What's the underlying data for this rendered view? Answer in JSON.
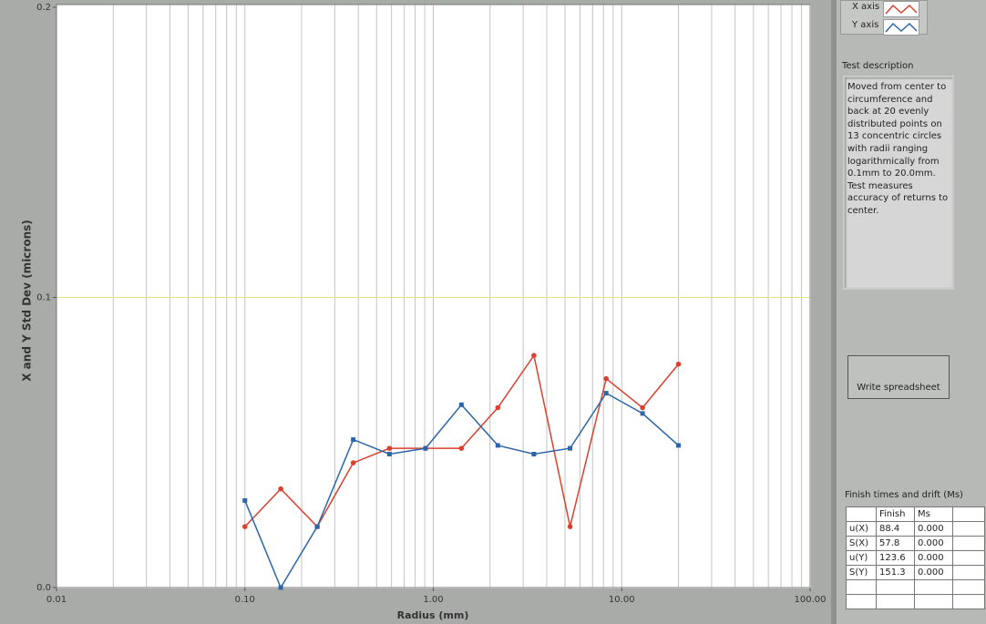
{
  "chart_data": {
    "type": "line",
    "x_label": "Radius (mm)",
    "y_label": "X and Y Std Dev  (microns)",
    "x": [
      0.1,
      0.155,
      0.242,
      0.376,
      0.585,
      0.909,
      1.41,
      2.2,
      3.42,
      5.32,
      8.27,
      12.9,
      20.0
    ],
    "series": [
      {
        "name": "X axis",
        "color": "#d8412f",
        "marker": "circle",
        "values": [
          0.021,
          0.034,
          0.021,
          0.043,
          0.048,
          0.048,
          0.048,
          0.062,
          0.08,
          0.021,
          0.072,
          0.062,
          0.077
        ]
      },
      {
        "name": "Y axis",
        "color": "#2d66a8",
        "marker": "square",
        "values": [
          0.03,
          0.0,
          0.021,
          0.051,
          0.046,
          0.048,
          0.063,
          0.049,
          0.046,
          0.048,
          0.067,
          0.06,
          0.049
        ]
      }
    ],
    "xscale": "log",
    "xlim": [
      0.01,
      100
    ],
    "ylim": [
      0,
      0.2
    ],
    "xticks": [
      {
        "value": 0.01,
        "label": "0.01"
      },
      {
        "value": 0.1,
        "label": "0.10"
      },
      {
        "value": 1,
        "label": "1.00"
      },
      {
        "value": 10,
        "label": "10.00"
      },
      {
        "value": 100,
        "label": "100.00"
      }
    ],
    "yticks": [
      {
        "value": 0,
        "label": "0.0"
      },
      0.1,
      0.2
    ],
    "grid": true,
    "y_grid_color": "#e3e37a",
    "x_grid_color": "#c4c4c4"
  },
  "description": {
    "label": "Test description",
    "text": "Moved from center to circumference and back at 20 evenly distributed points on 13 concentric circles with radii ranging logarithmically from 0.1mm to 20.0mm. Test measures accuracy of returns to center."
  },
  "button": {
    "label": "Write spreadsheet"
  },
  "table": {
    "title": "Finish times and drift (Ms)",
    "columns": [
      "Finish",
      "Ms"
    ],
    "rows": [
      [
        "u(X)",
        "88.4",
        "0.000"
      ],
      [
        "S(X)",
        "57.8",
        "0.000"
      ],
      [
        "u(Y)",
        "123.6",
        "0.000"
      ],
      [
        "S(Y)",
        "151.3",
        "0.000"
      ]
    ]
  }
}
